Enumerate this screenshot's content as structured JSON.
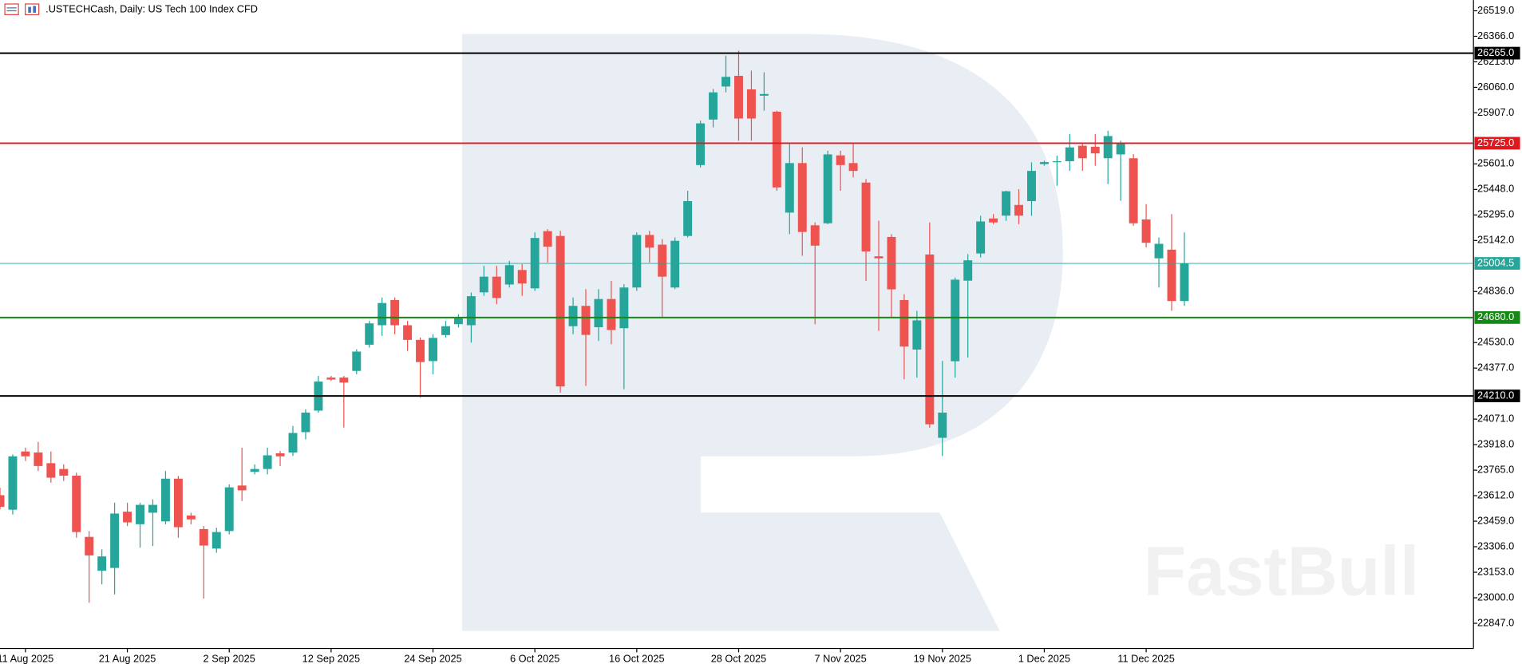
{
  "chart_data": {
    "type": "candlestick",
    "title": ".USTECHCash, Daily:  US Tech 100 Index CFD",
    "watermark": "FastBull",
    "up_color": "#26a69a",
    "down_color": "#ef5350",
    "categories": [
      null,
      null,
      "11 Aug 2025",
      null,
      null,
      null,
      null,
      null,
      null,
      null,
      "21 Aug 2025",
      null,
      null,
      null,
      null,
      null,
      null,
      null,
      "2 Sep 2025",
      null,
      null,
      null,
      null,
      null,
      null,
      null,
      "12 Sep 2025",
      null,
      null,
      null,
      null,
      null,
      null,
      null,
      "24 Sep 2025",
      null,
      null,
      null,
      null,
      null,
      null,
      null,
      "6 Oct 2025",
      null,
      null,
      null,
      null,
      null,
      null,
      null,
      "16 Oct 2025",
      null,
      null,
      null,
      null,
      null,
      null,
      null,
      "28 Oct 2025",
      null,
      null,
      null,
      null,
      null,
      null,
      null,
      "7 Nov 2025",
      null,
      null,
      null,
      null,
      null,
      null,
      null,
      "19 Nov 2025",
      null,
      null,
      null,
      null,
      null,
      null,
      null,
      "1 Dec 2025",
      null,
      null,
      null,
      null,
      null,
      null,
      null,
      "11 Dec 2025",
      null,
      null,
      null
    ],
    "open": [
      23615,
      23528,
      23877,
      23871,
      23807,
      23772,
      23732,
      23365,
      23162,
      23179,
      23516,
      23441,
      23510,
      23458,
      23714,
      23493,
      23412,
      23295,
      23400,
      23673,
      23755,
      23772,
      23866,
      23871,
      23993,
      24122,
      24320,
      24320,
      24360,
      24517,
      24634,
      24785,
      24634,
      24546,
      24419,
      24575,
      24640,
      24634,
      24831,
      24925,
      24878,
      24965,
      24855,
      25198,
      25169,
      24628,
      24750,
      24622,
      24791,
      24616,
      24860,
      25175,
      25117,
      24860,
      25169,
      25594,
      25867,
      26065,
      26129,
      26048,
      26010,
      25914,
      25309,
      25606,
      25233,
      25245,
      25652,
      25606,
      25489,
      25047,
      25163,
      24785,
      24488,
      25058,
      23959,
      24418,
      24901,
      25064,
      25274,
      25291,
      25355,
      25378,
      25600,
      25617,
      25617,
      25710,
      25704,
      25635,
      25658,
      25635,
      25268,
      25035,
      25087,
      24779
    ],
    "high": [
      23660,
      23860,
      23900,
      23935,
      23877,
      23800,
      23750,
      23400,
      23290,
      23570,
      23570,
      23570,
      23590,
      23760,
      23730,
      23510,
      23430,
      23420,
      23680,
      23900,
      23800,
      23900,
      23880,
      24030,
      24130,
      24330,
      24330,
      24330,
      24490,
      24660,
      24800,
      24800,
      24660,
      24560,
      24580,
      24660,
      24700,
      24830,
      24990,
      24990,
      25020,
      25000,
      25190,
      25210,
      25200,
      24800,
      24850,
      24850,
      24900,
      24880,
      25190,
      25200,
      25150,
      25160,
      25440,
      25860,
      26050,
      26250,
      26280,
      26160,
      26150,
      25920,
      25720,
      25700,
      25250,
      25680,
      25680,
      25720,
      25510,
      25260,
      25180,
      24820,
      24720,
      25250,
      24420,
      24920,
      25060,
      25290,
      25300,
      25440,
      25450,
      25610,
      25620,
      25650,
      25780,
      25720,
      25780,
      25800,
      25740,
      25660,
      25360,
      25160,
      25300,
      25190
    ],
    "low": [
      23530,
      23499,
      23820,
      23760,
      23690,
      23700,
      23360,
      22970,
      23080,
      23020,
      23430,
      23300,
      23310,
      23440,
      23360,
      23440,
      22995,
      23270,
      23380,
      23580,
      23740,
      23740,
      23790,
      23850,
      23950,
      24110,
      24300,
      24020,
      24340,
      24500,
      24570,
      24580,
      24480,
      24200,
      24340,
      24560,
      24620,
      24530,
      24810,
      24760,
      24860,
      24810,
      24840,
      25010,
      24230,
      24580,
      24270,
      24540,
      24520,
      24250,
      24840,
      25010,
      24680,
      24850,
      25160,
      25580,
      25820,
      26030,
      25740,
      25740,
      25920,
      25440,
      25180,
      25050,
      24640,
      25240,
      25440,
      25520,
      24900,
      24600,
      24680,
      24310,
      24320,
      24020,
      23850,
      24320,
      24440,
      25040,
      25240,
      25260,
      25240,
      25290,
      25590,
      25470,
      25560,
      25560,
      25590,
      25480,
      25380,
      25230,
      25100,
      24860,
      24720,
      24750
    ],
    "close": [
      23545,
      23848,
      23848,
      23790,
      23720,
      23732,
      23394,
      23254,
      23248,
      23505,
      23452,
      23557,
      23557,
      23714,
      23423,
      23470,
      23313,
      23394,
      23662,
      23644,
      23772,
      23854,
      23848,
      23988,
      24110,
      24296,
      24308,
      24290,
      24476,
      24645,
      24767,
      24634,
      24546,
      24413,
      24558,
      24628,
      24675,
      24808,
      24925,
      24797,
      24994,
      24884,
      25157,
      25105,
      24267,
      24750,
      24576,
      24791,
      24605,
      24860,
      25175,
      25099,
      24925,
      25140,
      25378,
      25844,
      26030,
      26123,
      25873,
      25873,
      26020,
      25460,
      25606,
      25193,
      25111,
      25658,
      25594,
      25559,
      25076,
      25035,
      24849,
      24506,
      24663,
      24040,
      24110,
      24907,
      25023,
      25256,
      25250,
      25437,
      25291,
      25559,
      25612,
      25617,
      25700,
      25635,
      25664,
      25768,
      25722,
      25245,
      25128,
      25122,
      24779,
      25004.5
    ],
    "ylim": [
      22696,
      26583
    ],
    "yticks": [
      {
        "value": 26519,
        "label": "26519.0"
      },
      {
        "value": 26366,
        "label": "26366.0"
      },
      {
        "value": 26213,
        "label": "26213.0"
      },
      {
        "value": 26060,
        "label": "26060.0"
      },
      {
        "value": 25907,
        "label": "25907.0"
      },
      {
        "value": 25601,
        "label": "25601.0"
      },
      {
        "value": 25448,
        "label": "25448.0"
      },
      {
        "value": 25295,
        "label": "25295.0"
      },
      {
        "value": 25142,
        "label": "25142.0"
      },
      {
        "value": 24836,
        "label": "24836.0"
      },
      {
        "value": 24530,
        "label": "24530.0"
      },
      {
        "value": 24377,
        "label": "24377.0"
      },
      {
        "value": 24071,
        "label": "24071.0"
      },
      {
        "value": 23918,
        "label": "23918.0"
      },
      {
        "value": 23765,
        "label": "23765.0"
      },
      {
        "value": 23612,
        "label": "23612.0"
      },
      {
        "value": 23459,
        "label": "23459.0"
      },
      {
        "value": 23306,
        "label": "23306.0"
      },
      {
        "value": 23153,
        "label": "23153.0"
      },
      {
        "value": 23000,
        "label": "23000.0"
      },
      {
        "value": 22847,
        "label": "22847.0"
      }
    ],
    "levels": [
      {
        "value": 26265,
        "label": "26265.0",
        "color": "#000000"
      },
      {
        "value": 25725,
        "label": "25725.0",
        "color": "#e0191f"
      },
      {
        "value": 25004.5,
        "label": "25004.5",
        "color": "#26a69a"
      },
      {
        "value": 24680,
        "label": "24680.0",
        "color": "#138a13"
      },
      {
        "value": 24210,
        "label": "24210.0",
        "color": "#000000"
      }
    ]
  }
}
